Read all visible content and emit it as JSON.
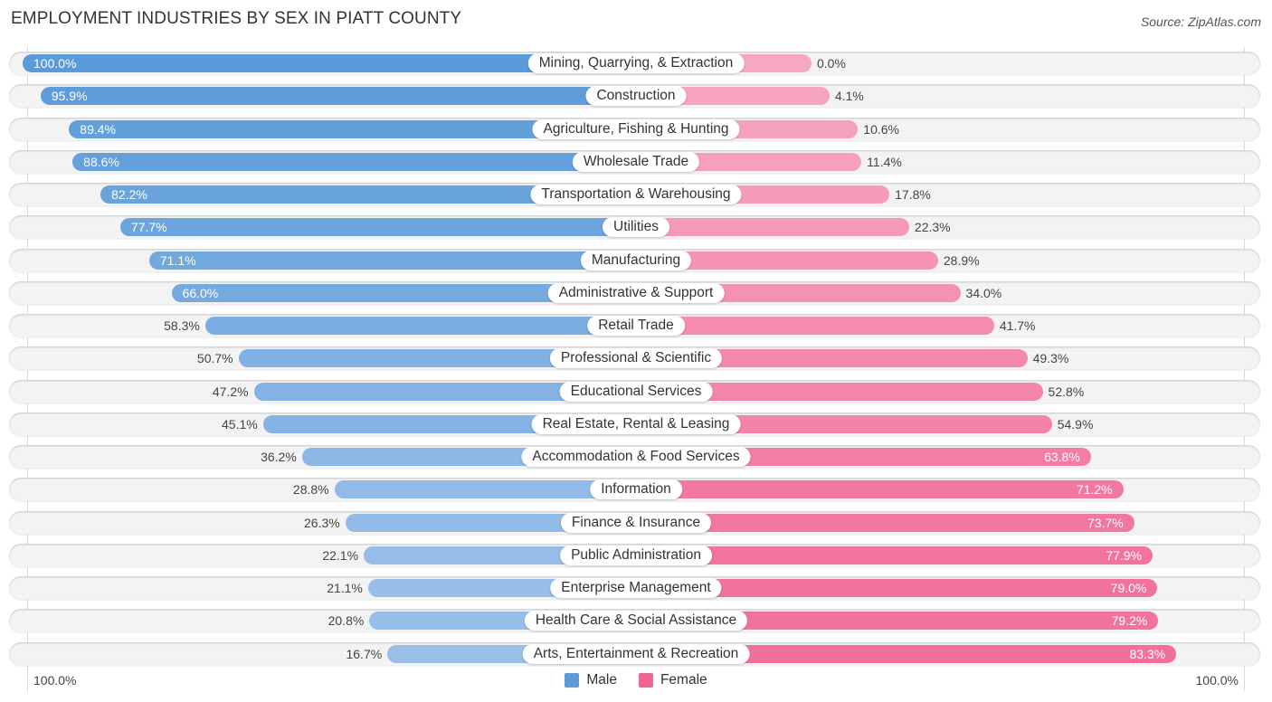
{
  "title": "EMPLOYMENT INDUSTRIES BY SEX IN PIATT COUNTY",
  "source": "Source: ZipAtlas.com",
  "colors": {
    "male_strong": "#5b9bd9",
    "male_light": "#a7c7ec",
    "female_light": "#f7a8c1",
    "female_strong": "#f06592"
  },
  "chart_data": {
    "type": "bar",
    "orientation": "horizontal-diverging",
    "title": "EMPLOYMENT INDUSTRIES BY SEX IN PIATT COUNTY",
    "xlabel": "",
    "ylabel": "",
    "axis_left_label": "100.0%",
    "axis_right_label": "100.0%",
    "xlim": [
      0,
      100
    ],
    "legend_position": "bottom-center",
    "categories": [
      "Mining, Quarrying, & Extraction",
      "Construction",
      "Agriculture, Fishing & Hunting",
      "Wholesale Trade",
      "Transportation & Warehousing",
      "Utilities",
      "Manufacturing",
      "Administrative & Support",
      "Retail Trade",
      "Professional & Scientific",
      "Educational Services",
      "Real Estate, Rental & Leasing",
      "Accommodation & Food Services",
      "Information",
      "Finance & Insurance",
      "Public Administration",
      "Enterprise Management",
      "Health Care & Social Assistance",
      "Arts, Entertainment & Recreation"
    ],
    "series": [
      {
        "name": "Male",
        "values": [
          100.0,
          95.9,
          89.4,
          88.6,
          82.2,
          77.7,
          71.1,
          66.0,
          58.3,
          50.7,
          47.2,
          45.1,
          36.2,
          28.8,
          26.3,
          22.1,
          21.1,
          20.8,
          16.7
        ],
        "labels": [
          "100.0%",
          "95.9%",
          "89.4%",
          "88.6%",
          "82.2%",
          "77.7%",
          "71.1%",
          "66.0%",
          "58.3%",
          "50.7%",
          "47.2%",
          "45.1%",
          "36.2%",
          "28.8%",
          "26.3%",
          "22.1%",
          "21.1%",
          "20.8%",
          "16.7%"
        ]
      },
      {
        "name": "Female",
        "values": [
          0.0,
          4.1,
          10.6,
          11.4,
          17.8,
          22.3,
          28.9,
          34.0,
          41.7,
          49.3,
          52.8,
          54.9,
          63.8,
          71.2,
          73.7,
          77.9,
          79.0,
          79.2,
          83.3
        ],
        "labels": [
          "0.0%",
          "4.1%",
          "10.6%",
          "11.4%",
          "17.8%",
          "22.3%",
          "28.9%",
          "34.0%",
          "41.7%",
          "49.3%",
          "52.8%",
          "54.9%",
          "63.8%",
          "71.2%",
          "73.7%",
          "77.9%",
          "79.0%",
          "79.2%",
          "83.3%"
        ]
      }
    ]
  },
  "legend": [
    {
      "name": "Male",
      "color": "#5b9bd9"
    },
    {
      "name": "Female",
      "color": "#f06592"
    }
  ]
}
